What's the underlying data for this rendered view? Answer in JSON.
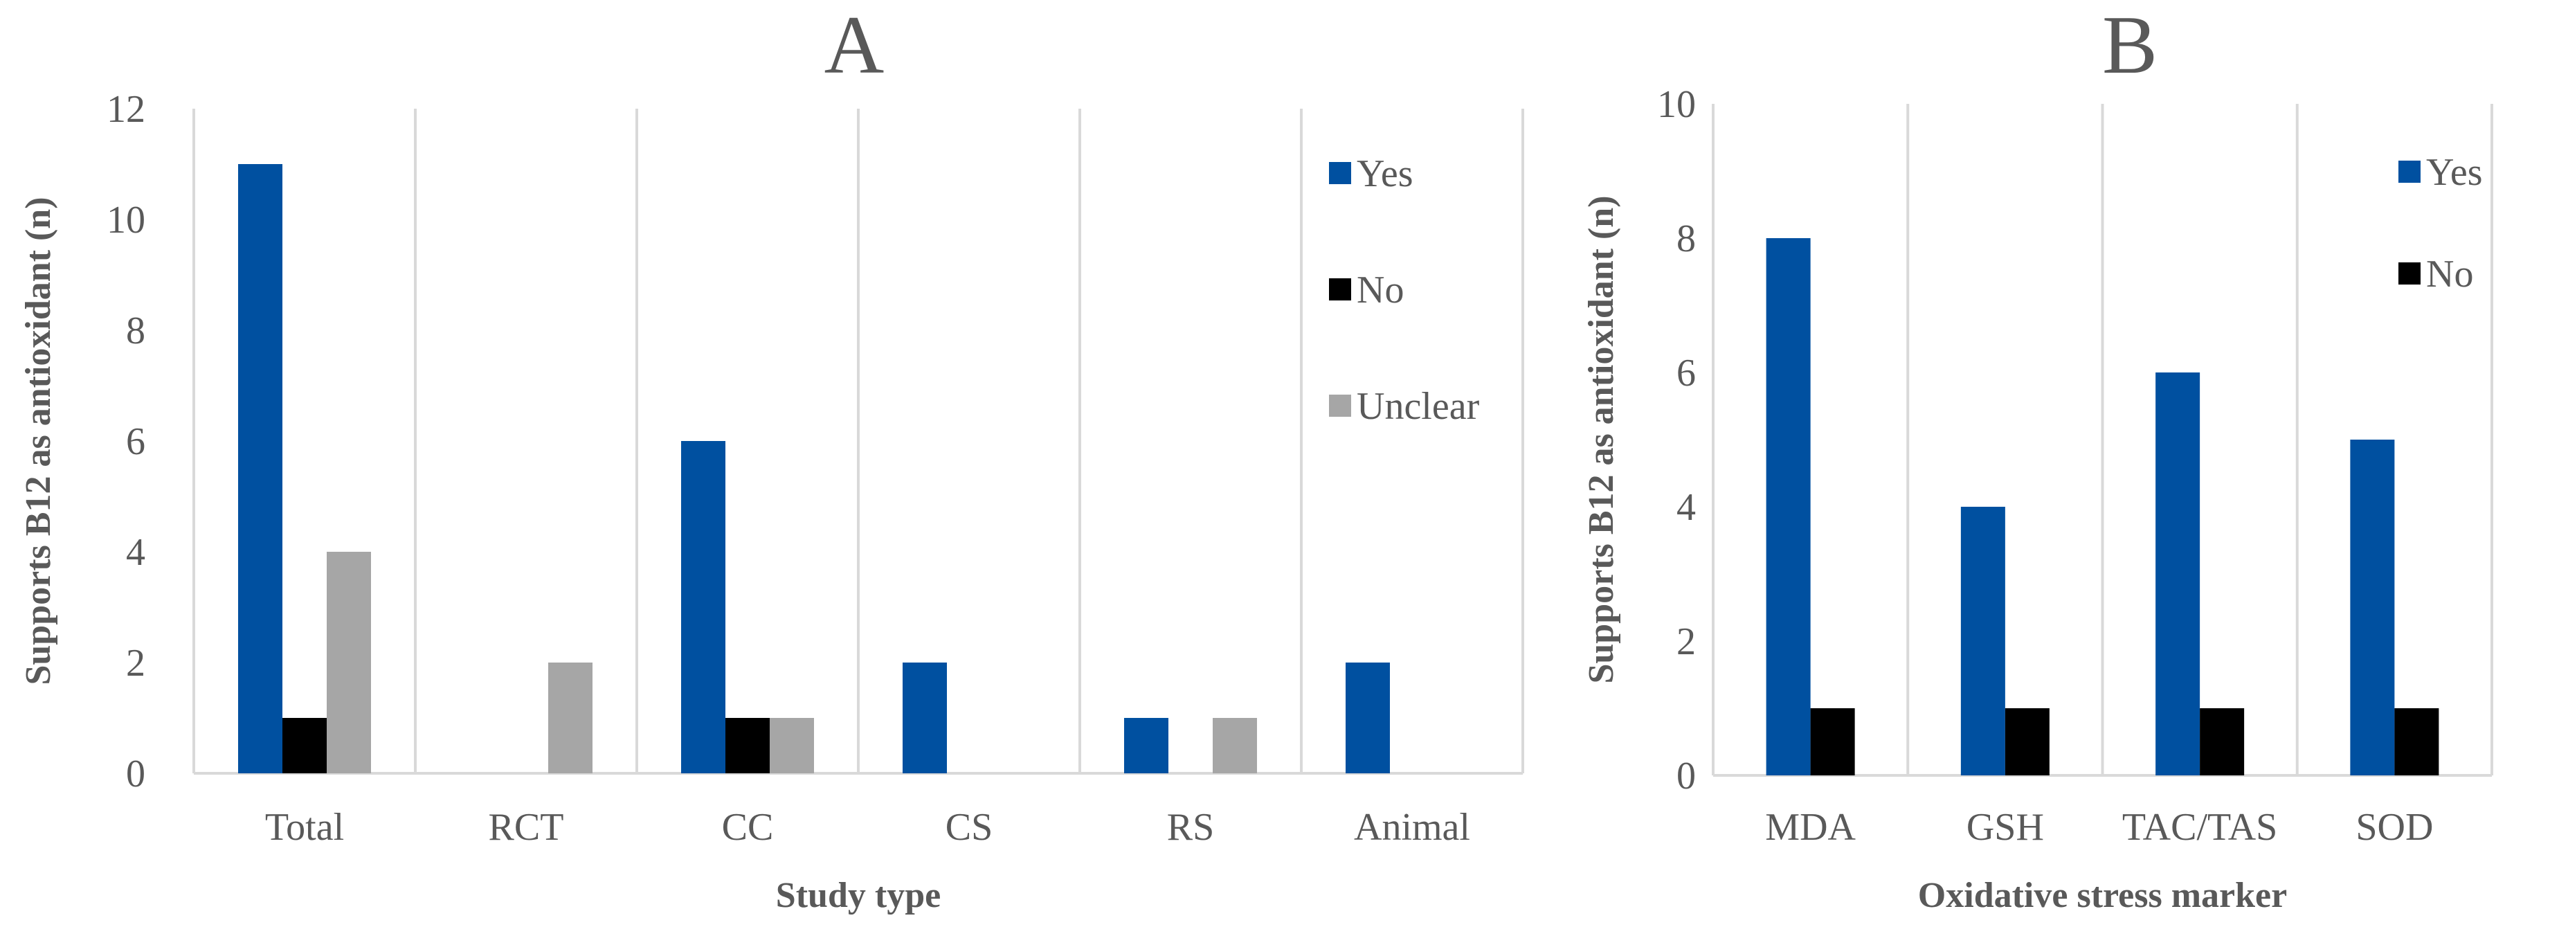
{
  "chart_data": [
    {
      "type": "bar",
      "panel": "A",
      "title": "A",
      "xlabel": "Study type",
      "ylabel": "Supports B12 as antioxidant (n)",
      "ylim": [
        0,
        12
      ],
      "yticks": [
        0,
        2,
        4,
        6,
        8,
        10,
        12
      ],
      "categories": [
        "Total",
        "RCT",
        "CC",
        "CS",
        "RS",
        "Animal"
      ],
      "series": [
        {
          "name": "Yes",
          "color": "#0050a0",
          "values": [
            11,
            0,
            6,
            2,
            1,
            2
          ]
        },
        {
          "name": "No",
          "color": "#000000",
          "values": [
            1,
            0,
            1,
            0,
            0,
            0
          ]
        },
        {
          "name": "Unclear",
          "color": "#a6a6a6",
          "values": [
            4,
            2,
            1,
            0,
            1,
            0
          ]
        }
      ],
      "legend_position": "top-right",
      "grid": "vertical category separators"
    },
    {
      "type": "bar",
      "panel": "B",
      "title": "B",
      "xlabel": "Oxidative stress marker",
      "ylabel": "Supports B12 as antioxidant (n)",
      "ylim": [
        0,
        10
      ],
      "yticks": [
        0,
        2,
        4,
        6,
        8,
        10
      ],
      "categories": [
        "MDA",
        "GSH",
        "TAC/TAS",
        "SOD"
      ],
      "series": [
        {
          "name": "Yes",
          "color": "#0050a0",
          "values": [
            8,
            4,
            6,
            5
          ]
        },
        {
          "name": "No",
          "color": "#000000",
          "values": [
            1,
            1,
            1,
            1
          ]
        }
      ],
      "legend_position": "top-right",
      "grid": "vertical category separators"
    }
  ]
}
